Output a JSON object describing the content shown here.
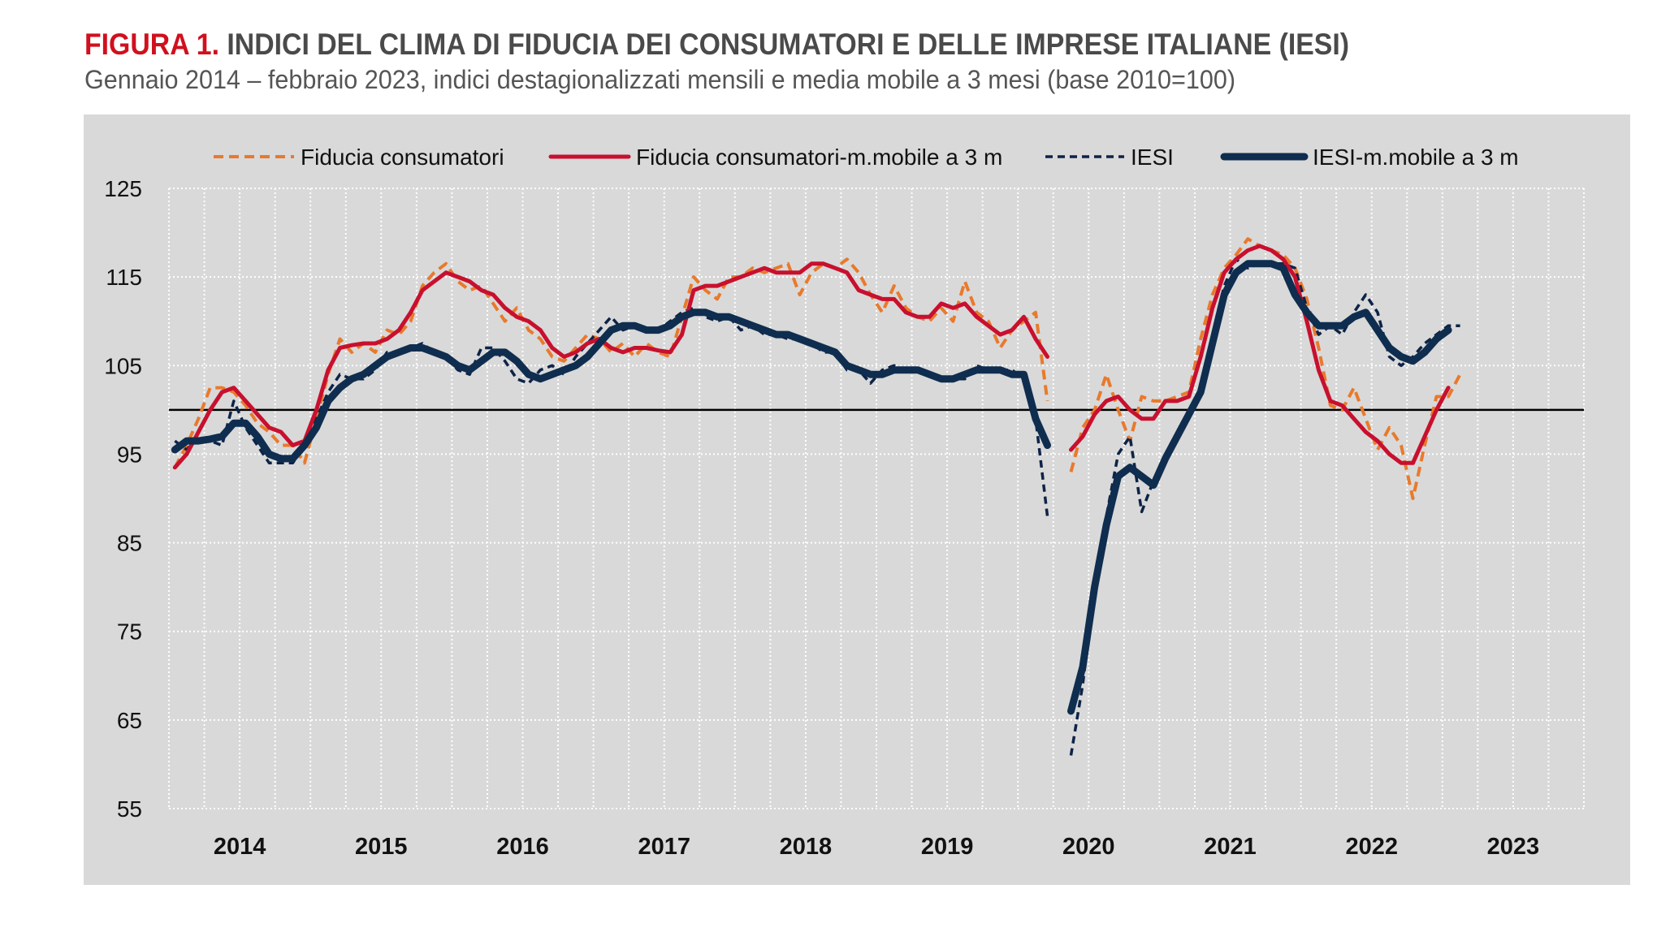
{
  "title": {
    "figure": "FIGURA 1.",
    "text": "INDICI DEL CLIMA DI FIDUCIA DEI CONSUMATORI E DELLE IMPRESE ITALIANE (IESI)"
  },
  "subtitle": "Gennaio 2014 – febbraio 2023, indici destagionalizzati mensili e media mobile a 3 mesi (base 2010=100)",
  "chart_data": {
    "type": "line",
    "x_start": "2014-01",
    "x_end": "2023-02",
    "x_frequency": "monthly",
    "x_tick_labels": [
      "2014",
      "2015",
      "2016",
      "2017",
      "2018",
      "2019",
      "2020",
      "2021",
      "2022",
      "2023"
    ],
    "ylim": [
      55,
      125
    ],
    "y_ticks": [
      125,
      115,
      105,
      95,
      85,
      75,
      65,
      55
    ],
    "reference_line": 100,
    "grid": true,
    "legend_placement": "top",
    "series": [
      {
        "name": "Fiducia consumatori",
        "style": "dashed",
        "color": "#e87a2d",
        "values": [
          93.5,
          96,
          99,
          102.5,
          102.5,
          102,
          100.5,
          98.5,
          97.5,
          96,
          96,
          94,
          99,
          104,
          108,
          106.5,
          107.5,
          106.5,
          109,
          108.5,
          110,
          114,
          115.5,
          116.5,
          114.5,
          113.5,
          114,
          112,
          110,
          111.5,
          109,
          108,
          106,
          105.5,
          107,
          108.5,
          108,
          106.5,
          107.5,
          106,
          107.5,
          106.5,
          106,
          110.5,
          115,
          113.5,
          112.5,
          115,
          115,
          116,
          115.5,
          116,
          116.5,
          113,
          115.5,
          116.5,
          116,
          117,
          115.5,
          113,
          111,
          114,
          111.5,
          110.5,
          110,
          111.5,
          110,
          114.5,
          111,
          110,
          107,
          109,
          110,
          111,
          101,
          null,
          93,
          98,
          100,
          104,
          100,
          96.5,
          101.5,
          101,
          101,
          101.5,
          102,
          108,
          113,
          116,
          117.5,
          119.3,
          118.5,
          118,
          117.5,
          116,
          112.5,
          107,
          100.5,
          100,
          102.5,
          99,
          95.5,
          98,
          96,
          90,
          96,
          101.5,
          101.5,
          104
        ]
      },
      {
        "name": "Fiducia consumatori-m.mobile a 3 m",
        "style": "solid",
        "color": "#c8102e",
        "values": [
          93.5,
          95,
          97.5,
          100,
          102,
          102.5,
          101,
          99.5,
          98,
          97.5,
          96,
          96.5,
          100,
          104.5,
          107,
          107.3,
          107.5,
          107.5,
          108,
          109,
          111,
          113.5,
          114.5,
          115.5,
          115,
          114.5,
          113.5,
          113,
          111.5,
          110.5,
          110,
          109,
          107,
          106,
          106.5,
          107.5,
          108,
          107,
          106.5,
          107,
          107,
          106.7,
          106.5,
          108.5,
          113.5,
          114,
          114,
          114.5,
          115,
          115.5,
          116,
          115.5,
          115.5,
          115.5,
          116.5,
          116.5,
          116,
          115.5,
          113.5,
          113,
          112.5,
          112.5,
          111,
          110.5,
          110.5,
          112,
          111.5,
          112,
          110.5,
          109.5,
          108.5,
          109,
          110.5,
          108,
          106,
          null,
          95.5,
          97,
          99.5,
          101,
          101.5,
          100,
          99,
          99,
          101,
          101,
          101.5,
          106,
          111.5,
          115.5,
          117,
          118,
          118.5,
          118,
          117,
          115,
          110,
          104.5,
          101,
          100.5,
          99,
          97.5,
          96.5,
          95,
          94,
          94,
          97,
          100,
          102.5
        ]
      },
      {
        "name": "IESI",
        "style": "dashed",
        "color": "#0d2347",
        "values": [
          96.5,
          95.5,
          97,
          96.5,
          96,
          101,
          98,
          96,
          94,
          94,
          94,
          96,
          99,
          102,
          104,
          103.5,
          103.5,
          104.5,
          106.5,
          106.5,
          107,
          107.5,
          106.5,
          106,
          104.5,
          104,
          107,
          107,
          105.5,
          103.5,
          103,
          104.5,
          105,
          104,
          106,
          107.5,
          109,
          110.5,
          109,
          109.5,
          109,
          109,
          110,
          111,
          111.5,
          110.5,
          110,
          110.5,
          109,
          109.5,
          108.5,
          108.5,
          108,
          108,
          107.5,
          106.5,
          106.5,
          104.5,
          104.5,
          103,
          104.5,
          105,
          104.5,
          104.5,
          104,
          103.5,
          103.5,
          103.5,
          105,
          104.5,
          104.5,
          104.5,
          103.5,
          99,
          88,
          null,
          61,
          69,
          80,
          88,
          95,
          97,
          88.5,
          92,
          95,
          97.5,
          100,
          102.5,
          108.5,
          114,
          117,
          116,
          116.5,
          116.5,
          116.5,
          116,
          111.5,
          108.5,
          109.5,
          108.5,
          111,
          113,
          111,
          106,
          105,
          106,
          107.5,
          108.5,
          109.5,
          109.5
        ]
      },
      {
        "name": "IESI-m.mobile a 3 m",
        "style": "solid-thick",
        "color": "#0f2d4f",
        "values": [
          95.5,
          96.5,
          96.5,
          96.7,
          97,
          98.5,
          98.5,
          97,
          95,
          94.5,
          94.5,
          96,
          98,
          101,
          102.5,
          103.5,
          104,
          105,
          106,
          106.5,
          107,
          107,
          106.5,
          106,
          105,
          104.5,
          105.5,
          106.5,
          106.5,
          105.5,
          104,
          103.5,
          104,
          104.5,
          105,
          106,
          107.5,
          109,
          109.5,
          109.5,
          109,
          109,
          109.5,
          110.5,
          111,
          111,
          110.5,
          110.5,
          110,
          109.5,
          109,
          108.5,
          108.5,
          108,
          107.5,
          107,
          106.5,
          105,
          104.5,
          104,
          104,
          104.5,
          104.5,
          104.5,
          104,
          103.5,
          103.5,
          104,
          104.5,
          104.5,
          104.5,
          104,
          104,
          99,
          96,
          null,
          66,
          71,
          80,
          87,
          92.5,
          93.5,
          92.5,
          91.5,
          94.5,
          97,
          99.5,
          102,
          107.5,
          113,
          115.5,
          116.5,
          116.5,
          116.5,
          116,
          113,
          111,
          109.5,
          109.5,
          109.5,
          110.5,
          111,
          109,
          107,
          106,
          105.5,
          106.5,
          108,
          109
        ]
      }
    ]
  }
}
